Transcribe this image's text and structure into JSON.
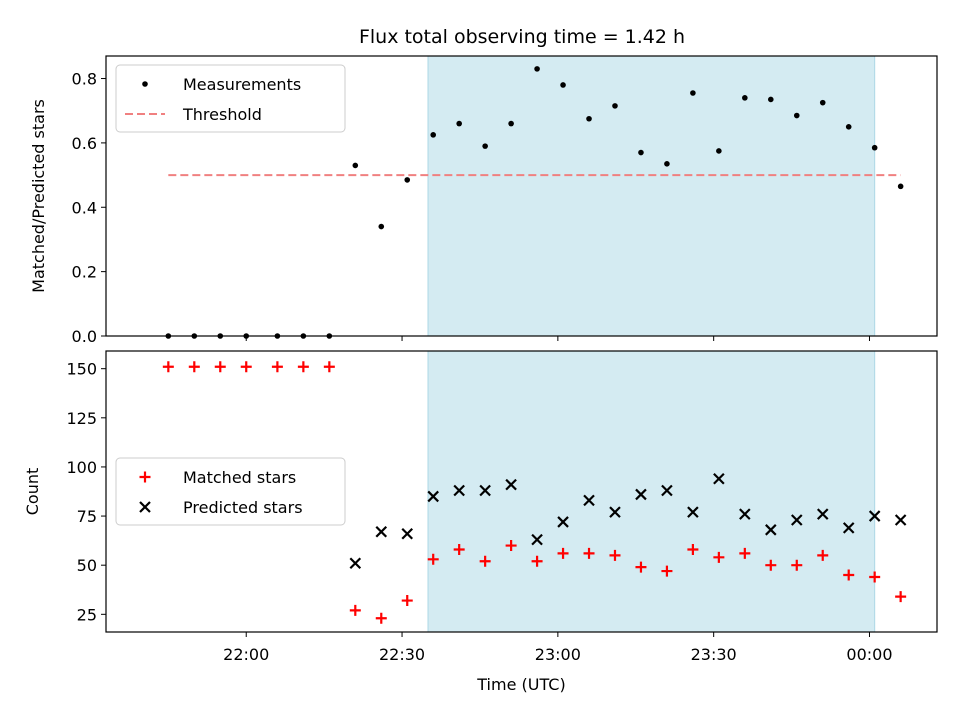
{
  "title": "Flux total observing time = 1.42 h",
  "colors": {
    "measurement": "#000000",
    "threshold": "#f08080",
    "matched": "#ff0000",
    "predicted": "#000000",
    "window": "#add8e6"
  },
  "chart_data": [
    {
      "type": "scatter",
      "ylabel": "Matched/Predicted stars",
      "ylim": [
        0,
        0.87
      ],
      "yticks": [
        "0.0",
        "0.2",
        "0.4",
        "0.6",
        "0.8"
      ],
      "xlim": [
        "21:33",
        "00:13"
      ],
      "observing_window": [
        "22:35",
        "00:01"
      ],
      "legend_position": "upper-left",
      "threshold": {
        "name": "Threshold",
        "x": [
          "21:45",
          "00:06"
        ],
        "y": 0.5,
        "style": "dashed"
      },
      "series": [
        {
          "name": "Measurements",
          "x": [
            "21:45",
            "21:50",
            "21:55",
            "22:00",
            "22:06",
            "22:11",
            "22:16",
            "22:21",
            "22:26",
            "22:31",
            "22:36",
            "22:41",
            "22:46",
            "22:51",
            "22:56",
            "23:01",
            "23:06",
            "23:11",
            "23:16",
            "23:21",
            "23:26",
            "23:31",
            "23:36",
            "23:41",
            "23:46",
            "23:51",
            "23:56",
            "00:01",
            "00:06"
          ],
          "y": [
            0,
            0,
            0,
            0,
            0,
            0,
            0,
            0.53,
            0.34,
            0.485,
            0.625,
            0.66,
            0.59,
            0.66,
            0.83,
            0.78,
            0.675,
            0.715,
            0.57,
            0.535,
            0.755,
            0.575,
            0.74,
            0.735,
            0.685,
            0.725,
            0.65,
            0.585,
            0.465
          ]
        }
      ]
    },
    {
      "type": "scatter",
      "ylabel": "Count",
      "xlabel": "Time (UTC)",
      "ylim": [
        16,
        159
      ],
      "yticks": [
        "25",
        "50",
        "75",
        "100",
        "125",
        "150"
      ],
      "xlim": [
        "21:33",
        "00:13"
      ],
      "xticks": [
        "22:00",
        "22:30",
        "23:00",
        "23:30",
        "00:00"
      ],
      "observing_window": [
        "22:35",
        "00:01"
      ],
      "legend_position": "center-left",
      "series": [
        {
          "name": "Matched stars",
          "marker": "plus",
          "x": [
            "21:45",
            "21:50",
            "21:55",
            "22:00",
            "22:06",
            "22:11",
            "22:16",
            "22:21",
            "22:26",
            "22:31",
            "22:36",
            "22:41",
            "22:46",
            "22:51",
            "22:56",
            "23:01",
            "23:06",
            "23:11",
            "23:16",
            "23:21",
            "23:26",
            "23:31",
            "23:36",
            "23:41",
            "23:46",
            "23:51",
            "23:56",
            "00:01",
            "00:06"
          ],
          "y": [
            151,
            151,
            151,
            151,
            151,
            151,
            151,
            27,
            23,
            32,
            53,
            58,
            52,
            60,
            52,
            56,
            56,
            55,
            49,
            47,
            58,
            54,
            56,
            50,
            50,
            55,
            45,
            44,
            34
          ]
        },
        {
          "name": "Predicted stars",
          "marker": "x",
          "x": [
            "22:21",
            "22:26",
            "22:31",
            "22:36",
            "22:41",
            "22:46",
            "22:51",
            "22:56",
            "23:01",
            "23:06",
            "23:11",
            "23:16",
            "23:21",
            "23:26",
            "23:31",
            "23:36",
            "23:41",
            "23:46",
            "23:51",
            "23:56",
            "00:01",
            "00:06"
          ],
          "y": [
            51,
            67,
            66,
            85,
            88,
            88,
            91,
            63,
            72,
            83,
            77,
            86,
            88,
            77,
            94,
            76,
            68,
            73,
            76,
            69,
            75,
            73
          ]
        }
      ]
    }
  ]
}
